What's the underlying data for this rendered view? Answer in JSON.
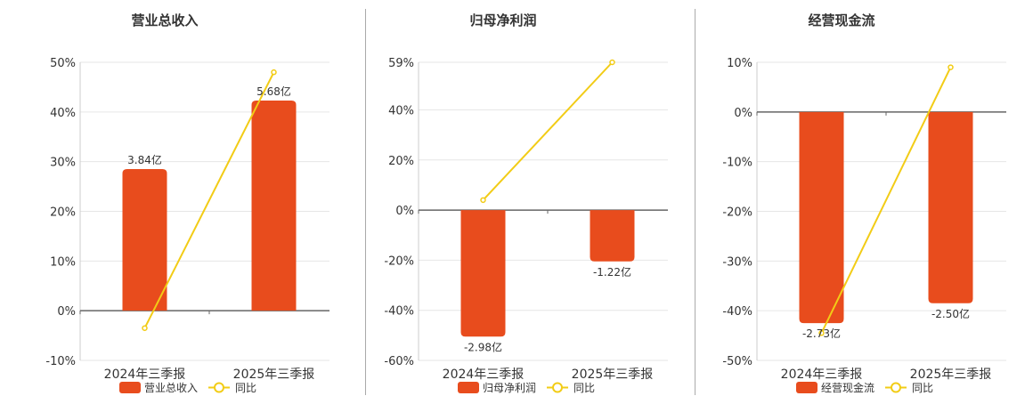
{
  "colors": {
    "bar": "#E84C1D",
    "line": "#F2CC16",
    "grid": "#e6e6e6",
    "axis": "#666666",
    "text": "#333333"
  },
  "legend": {
    "yoy_label": "同比"
  },
  "chart_data": [
    {
      "type": "bar",
      "title": "营业总收入",
      "categories": [
        "2024年三季报",
        "2025年三季报"
      ],
      "series": [
        {
          "name": "营业总收入",
          "kind": "bar",
          "values": [
            28.5,
            42.3
          ],
          "value_labels": [
            "3.84亿",
            "5.68亿"
          ]
        },
        {
          "name": "同比",
          "kind": "line",
          "values": [
            -3.5,
            48.0
          ]
        }
      ],
      "yticks": [
        50,
        40,
        30,
        20,
        10,
        0,
        -10
      ],
      "ytick_labels": [
        "50%",
        "40%",
        "30%",
        "20%",
        "10%",
        "0%",
        "-10%"
      ],
      "ylim": [
        -10,
        50
      ],
      "grid": true,
      "legend_position": "bottom"
    },
    {
      "type": "bar",
      "title": "归母净利润",
      "categories": [
        "2024年三季报",
        "2025年三季报"
      ],
      "series": [
        {
          "name": "归母净利润",
          "kind": "bar",
          "values": [
            -50.5,
            -20.5
          ],
          "value_labels": [
            "-2.98亿",
            "-1.22亿"
          ]
        },
        {
          "name": "同比",
          "kind": "line",
          "values": [
            4.0,
            59.0
          ]
        }
      ],
      "yticks": [
        59,
        40,
        20,
        0,
        -20,
        -40,
        -60
      ],
      "ytick_labels": [
        "59%",
        "40%",
        "20%",
        "0%",
        "-20%",
        "-40%",
        "-60%"
      ],
      "ylim": [
        -60,
        59
      ],
      "grid": true,
      "legend_position": "bottom"
    },
    {
      "type": "bar",
      "title": "经营现金流",
      "categories": [
        "2024年三季报",
        "2025年三季报"
      ],
      "series": [
        {
          "name": "经营现金流",
          "kind": "bar",
          "values": [
            -42.5,
            -38.5
          ],
          "value_labels": [
            "-2.73亿",
            "-2.50亿"
          ]
        },
        {
          "name": "同比",
          "kind": "line",
          "values": [
            -44.5,
            9.0
          ]
        }
      ],
      "yticks": [
        10,
        0,
        -10,
        -20,
        -30,
        -40,
        -50
      ],
      "ytick_labels": [
        "10%",
        "0%",
        "-10%",
        "-20%",
        "-30%",
        "-40%",
        "-50%"
      ],
      "ylim": [
        -50,
        10
      ],
      "grid": true,
      "legend_position": "bottom"
    }
  ]
}
